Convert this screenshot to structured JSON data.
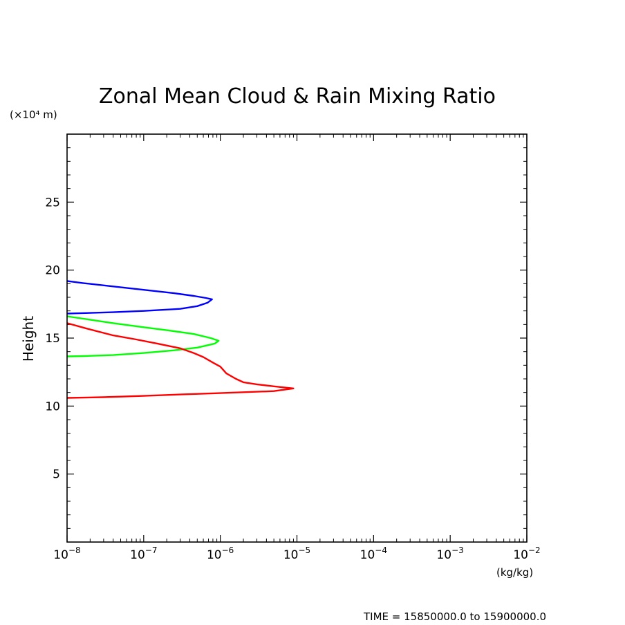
{
  "chart_data": {
    "type": "line",
    "title": "Zonal Mean Cloud & Rain Mixing Ratio",
    "ylabel": "Height",
    "yunit": "(×10⁴ m)",
    "xunit": "(kg/kg)",
    "footer": "TIME = 15850000.0 to 15900000.0",
    "xscale": "log",
    "xlim": [
      1e-08,
      0.01
    ],
    "ylim": [
      0,
      30
    ],
    "xticks": [
      {
        "value": 1e-08,
        "base": "10",
        "exp": "−8"
      },
      {
        "value": 1e-07,
        "base": "10",
        "exp": "−7"
      },
      {
        "value": 1e-06,
        "base": "10",
        "exp": "−6"
      },
      {
        "value": 1e-05,
        "base": "10",
        "exp": "−5"
      },
      {
        "value": 0.0001,
        "base": "10",
        "exp": "−4"
      },
      {
        "value": 0.001,
        "base": "10",
        "exp": "−3"
      },
      {
        "value": 0.01,
        "base": "10",
        "exp": "−2"
      }
    ],
    "yticks": [
      {
        "value": 5,
        "label": "5"
      },
      {
        "value": 10,
        "label": "10"
      },
      {
        "value": 15,
        "label": "15"
      },
      {
        "value": 20,
        "label": "20"
      },
      {
        "value": 25,
        "label": "25"
      }
    ],
    "series": [
      {
        "color": "#0000ff",
        "points": [
          [
            1e-08,
            19.2
          ],
          [
            1.6e-08,
            19.05
          ],
          [
            4e-08,
            18.8
          ],
          [
            1e-07,
            18.55
          ],
          [
            2.5e-07,
            18.3
          ],
          [
            4.5e-07,
            18.1
          ],
          [
            6.5e-07,
            17.95
          ],
          [
            7.8e-07,
            17.85
          ],
          [
            6.8e-07,
            17.6
          ],
          [
            5e-07,
            17.35
          ],
          [
            3e-07,
            17.15
          ],
          [
            1e-07,
            17.0
          ],
          [
            4e-08,
            16.9
          ],
          [
            1e-08,
            16.8
          ]
        ]
      },
      {
        "color": "#00ff00",
        "points": [
          [
            1e-08,
            16.6
          ],
          [
            2e-08,
            16.35
          ],
          [
            4e-08,
            16.1
          ],
          [
            1e-07,
            15.8
          ],
          [
            2.2e-07,
            15.55
          ],
          [
            4.5e-07,
            15.3
          ],
          [
            7.5e-07,
            15.0
          ],
          [
            9.5e-07,
            14.8
          ],
          [
            8.5e-07,
            14.6
          ],
          [
            5e-07,
            14.3
          ],
          [
            2.5e-07,
            14.1
          ],
          [
            1e-07,
            13.9
          ],
          [
            4e-08,
            13.75
          ],
          [
            1.7e-08,
            13.68
          ],
          [
            1e-08,
            13.65
          ]
        ]
      },
      {
        "color": "#ff0000",
        "points": [
          [
            1e-08,
            16.1
          ],
          [
            1.8e-08,
            15.7
          ],
          [
            4e-08,
            15.2
          ],
          [
            8e-08,
            14.9
          ],
          [
            1.5e-07,
            14.6
          ],
          [
            3e-07,
            14.25
          ],
          [
            4.5e-07,
            13.9
          ],
          [
            6e-07,
            13.6
          ],
          [
            8e-07,
            13.2
          ],
          [
            1e-06,
            12.9
          ],
          [
            1.2e-06,
            12.4
          ],
          [
            1.6e-06,
            12.0
          ],
          [
            2e-06,
            11.75
          ],
          [
            3e-06,
            11.6
          ],
          [
            5e-06,
            11.45
          ],
          [
            9e-06,
            11.3
          ],
          [
            5e-06,
            11.1
          ],
          [
            1e-06,
            10.95
          ],
          [
            3e-07,
            10.85
          ],
          [
            1e-07,
            10.75
          ],
          [
            3e-08,
            10.65
          ],
          [
            1e-08,
            10.6
          ]
        ]
      }
    ],
    "grid": false,
    "legend": "none"
  }
}
